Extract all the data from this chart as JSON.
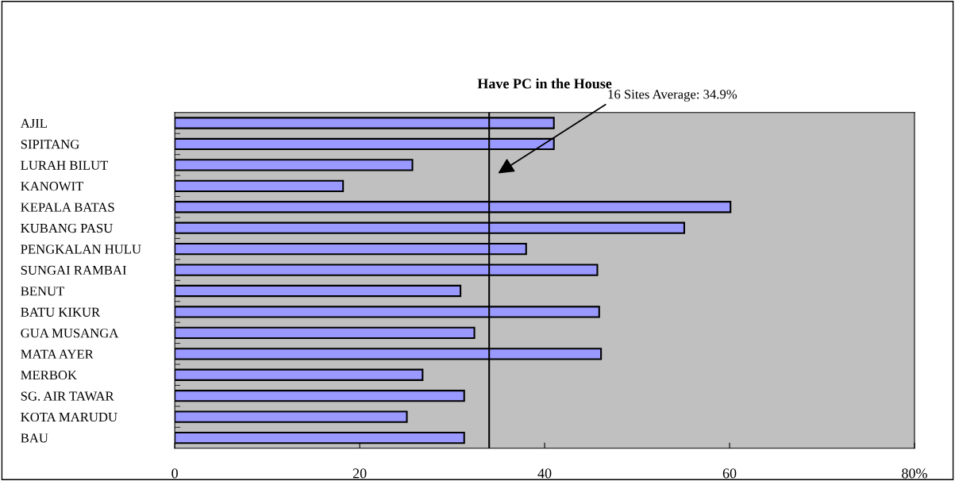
{
  "chart_data": {
    "type": "bar",
    "orientation": "horizontal",
    "title": "Have PC in the House",
    "categories": [
      "AJIL",
      "SIPITANG",
      "LURAH BILUT",
      "KANOWIT",
      "KEPALA BATAS",
      "KUBANG PASU",
      "PENGKALAN HULU",
      "SUNGAI RAMBAI",
      "BENUT",
      "BATU KIKUR",
      "GUA MUSANGA",
      "MATA AYER",
      "MERBOK",
      "SG. AIR TAWAR",
      "KOTA MARUDU",
      "BAU"
    ],
    "values": [
      41.0,
      41.0,
      25.7,
      18.2,
      60.1,
      55.1,
      38.0,
      45.7,
      30.9,
      45.9,
      32.4,
      46.1,
      26.8,
      31.3,
      25.1,
      31.3
    ],
    "color": "#9999ff",
    "xlim": [
      0,
      80
    ],
    "xticks": [
      0,
      20,
      40,
      60,
      {
        "value": 80,
        "label": "80%"
      }
    ],
    "ref_lines": [
      {
        "axis": "x",
        "value": 34,
        "color": "#000000"
      }
    ],
    "annotations": [
      "16 Sites Average: 34.9%"
    ],
    "grid": false
  }
}
